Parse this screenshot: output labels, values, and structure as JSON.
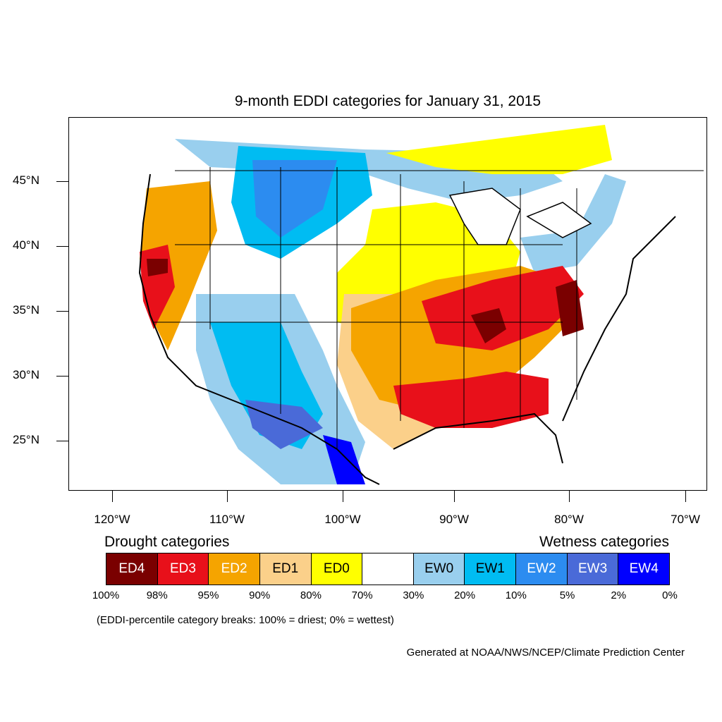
{
  "title": "9-month EDDI categories for January 31, 2015",
  "lat_labels": [
    "45°N",
    "40°N",
    "35°N",
    "30°N",
    "25°N"
  ],
  "lon_labels": [
    "120°W",
    "110°W",
    "100°W",
    "90°W",
    "80°W",
    "70°W"
  ],
  "legend": {
    "drought_title": "Drought categories",
    "wetness_title": "Wetness categories",
    "categories": [
      {
        "label": "ED4",
        "color": "#7a0000",
        "text_color": "#ffffff"
      },
      {
        "label": "ED3",
        "color": "#e8101a",
        "text_color": "#ffffff"
      },
      {
        "label": "ED2",
        "color": "#f5a400",
        "text_color": "#ffffff"
      },
      {
        "label": "ED1",
        "color": "#fbd08a",
        "text_color": "#000000"
      },
      {
        "label": "ED0",
        "color": "#ffff00",
        "text_color": "#000000"
      },
      {
        "label": "",
        "color": "#ffffff",
        "text_color": "#000000"
      },
      {
        "label": "EW0",
        "color": "#99cfee",
        "text_color": "#000000"
      },
      {
        "label": "EW1",
        "color": "#00bcf2",
        "text_color": "#000000"
      },
      {
        "label": "EW2",
        "color": "#2c8cf0",
        "text_color": "#ffffff"
      },
      {
        "label": "EW3",
        "color": "#4a6ad8",
        "text_color": "#ffffff"
      },
      {
        "label": "EW4",
        "color": "#0000ff",
        "text_color": "#ffffff"
      }
    ],
    "breaks": [
      "100%",
      "98%",
      "95%",
      "90%",
      "80%",
      "70%",
      "30%",
      "20%",
      "10%",
      "5%",
      "2%",
      "0%"
    ]
  },
  "note": "(EDDI-percentile category breaks: 100% = driest; 0% = wettest)",
  "credit": "Generated at NOAA/NWS/NCEP/Climate Prediction Center"
}
